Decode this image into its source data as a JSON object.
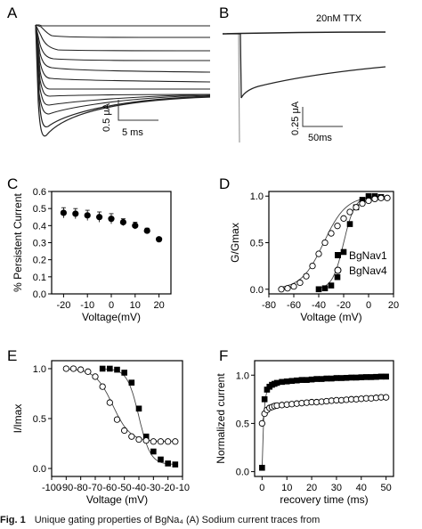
{
  "panels": {
    "A": {
      "letter": "A",
      "scale_y": "0.5 μA",
      "scale_x": "5 ms"
    },
    "B": {
      "letter": "B",
      "label": "20nM TTX",
      "scale_y": "0.25 μA",
      "scale_x": "50ms"
    },
    "C": {
      "letter": "C"
    },
    "D": {
      "letter": "D",
      "legend": [
        "BgNav1",
        "BgNav4"
      ]
    },
    "E": {
      "letter": "E"
    },
    "F": {
      "letter": "F"
    }
  },
  "chart_data": [
    {
      "panel": "C",
      "type": "scatter",
      "xlabel": "Voltage(mV)",
      "ylabel": "% Persistent Current",
      "xlim": [
        -25,
        25
      ],
      "ylim": [
        0,
        0.6
      ],
      "xticks": [
        "-20",
        "-10",
        "0",
        "10",
        "20"
      ],
      "yticks": [
        "0.0",
        "0.1",
        "0.2",
        "0.3",
        "0.4",
        "0.5",
        "0.6"
      ],
      "series": [
        {
          "x": [
            -20,
            -15,
            -10,
            -5,
            0,
            5,
            10,
            15,
            20
          ],
          "y": [
            0.475,
            0.47,
            0.46,
            0.45,
            0.44,
            0.42,
            0.4,
            0.37,
            0.32
          ],
          "err": [
            0.03,
            0.03,
            0.03,
            0.03,
            0.03,
            0.02,
            0.02,
            0.015,
            0.01
          ]
        }
      ]
    },
    {
      "panel": "D",
      "type": "scatter",
      "xlabel": "Voltage (mV)",
      "ylabel": "G/Gmax",
      "xlim": [
        -80,
        20
      ],
      "ylim": [
        -0.05,
        1.05
      ],
      "xticks": [
        "-80",
        "-60",
        "-40",
        "-20",
        "0",
        "20"
      ],
      "yticks": [
        "0.0",
        "0.5",
        "1.0"
      ],
      "series": [
        {
          "name": "BgNav1",
          "marker": "filled-square",
          "x": [
            -40,
            -35,
            -30,
            -25,
            -20,
            -15,
            -10,
            -5,
            0,
            5,
            10
          ],
          "y": [
            0.0,
            0.01,
            0.04,
            0.13,
            0.4,
            0.7,
            0.88,
            0.96,
            1.0,
            1.0,
            0.99
          ]
        },
        {
          "name": "BgNav4",
          "marker": "open-circle",
          "x": [
            -70,
            -65,
            -60,
            -55,
            -50,
            -45,
            -40,
            -35,
            -30,
            -25,
            -20,
            -15,
            -10,
            -5,
            0,
            5,
            10,
            15
          ],
          "y": [
            0.0,
            0.01,
            0.03,
            0.07,
            0.14,
            0.25,
            0.38,
            0.5,
            0.6,
            0.68,
            0.76,
            0.83,
            0.88,
            0.92,
            0.95,
            0.97,
            0.98,
            0.98
          ]
        }
      ]
    },
    {
      "panel": "E",
      "type": "scatter",
      "xlabel": "Voltage (mV)",
      "ylabel": "I/Imax",
      "xlim": [
        -100,
        -10
      ],
      "ylim": [
        -0.08,
        1.08
      ],
      "xticks": [
        "-100",
        "-90",
        "-80",
        "-70",
        "-60",
        "-50",
        "-40",
        "-30",
        "-20",
        "-10"
      ],
      "yticks": [
        "0.0",
        "0.5",
        "1.0"
      ],
      "series": [
        {
          "name": "BgNav1",
          "marker": "filled-square",
          "x": [
            -65,
            -60,
            -55,
            -50,
            -45,
            -40,
            -35,
            -30,
            -25,
            -20,
            -15
          ],
          "y": [
            1.0,
            1.0,
            0.99,
            0.96,
            0.86,
            0.6,
            0.32,
            0.17,
            0.09,
            0.05,
            0.04
          ]
        },
        {
          "name": "BgNav4",
          "marker": "open-circle",
          "x": [
            -90,
            -85,
            -80,
            -75,
            -70,
            -65,
            -60,
            -55,
            -50,
            -45,
            -40,
            -35,
            -30,
            -25,
            -20,
            -15
          ],
          "y": [
            1.0,
            1.0,
            0.99,
            0.97,
            0.92,
            0.82,
            0.66,
            0.49,
            0.38,
            0.32,
            0.29,
            0.28,
            0.27,
            0.27,
            0.27,
            0.27
          ]
        }
      ]
    },
    {
      "panel": "F",
      "type": "scatter",
      "xlabel": "recovery time (ms)",
      "ylabel": "Normalized current",
      "xlim": [
        -3,
        53
      ],
      "ylim": [
        -0.05,
        1.15
      ],
      "xticks": [
        "0",
        "10",
        "20",
        "30",
        "40",
        "50"
      ],
      "yticks": [
        "0.0",
        "0.5",
        "1.0"
      ],
      "series": [
        {
          "name": "BgNav1",
          "marker": "filled-square",
          "x": [
            0,
            1,
            2,
            3,
            4,
            5,
            6,
            8,
            10,
            12,
            14,
            16,
            18,
            20,
            22,
            24,
            26,
            28,
            30,
            32,
            34,
            36,
            38,
            40,
            42,
            44,
            46,
            48,
            50
          ],
          "y": [
            0.04,
            0.75,
            0.85,
            0.88,
            0.9,
            0.91,
            0.92,
            0.93,
            0.935,
            0.94,
            0.945,
            0.95,
            0.95,
            0.955,
            0.96,
            0.96,
            0.965,
            0.965,
            0.97,
            0.97,
            0.972,
            0.975,
            0.975,
            0.978,
            0.98,
            0.98,
            0.982,
            0.985,
            0.985
          ]
        },
        {
          "name": "BgNav4",
          "marker": "open-circle",
          "x": [
            0,
            1,
            2,
            3,
            4,
            5,
            6,
            8,
            10,
            12,
            14,
            16,
            18,
            20,
            22,
            24,
            26,
            28,
            30,
            32,
            34,
            36,
            38,
            40,
            42,
            44,
            46,
            48,
            50
          ],
          "y": [
            0.5,
            0.6,
            0.64,
            0.66,
            0.67,
            0.68,
            0.685,
            0.69,
            0.695,
            0.7,
            0.705,
            0.71,
            0.715,
            0.72,
            0.72,
            0.725,
            0.73,
            0.735,
            0.74,
            0.74,
            0.745,
            0.75,
            0.75,
            0.755,
            0.76,
            0.76,
            0.765,
            0.77,
            0.77
          ]
        }
      ]
    }
  ],
  "caption": {
    "label": "Fig. 1",
    "text": "Unique gating properties of BgNa₄ (A) Sodium current traces from"
  }
}
